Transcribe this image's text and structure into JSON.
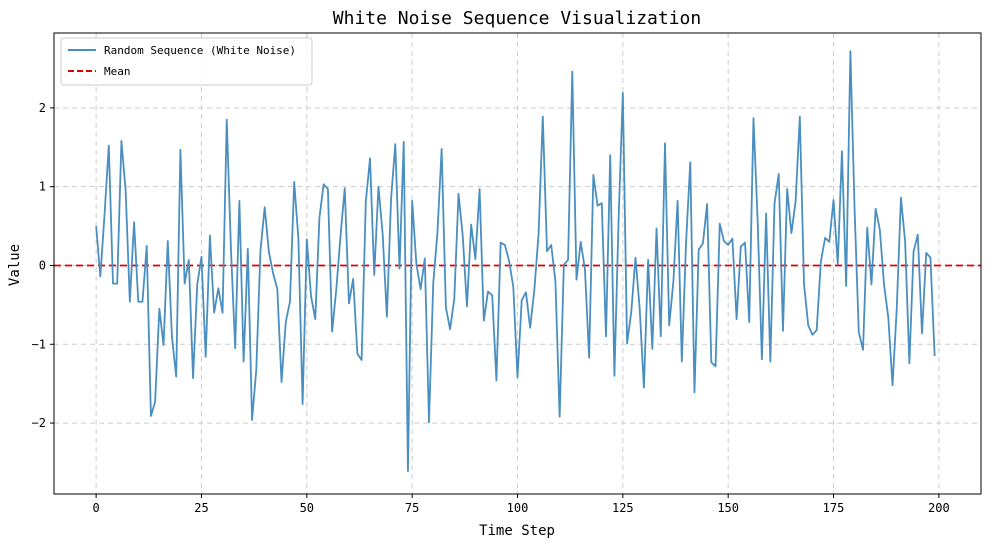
{
  "chart_data": {
    "type": "line",
    "title": "White Noise Sequence Visualization",
    "xlabel": "Time Step",
    "ylabel": "Value",
    "xlim": [
      -10,
      210
    ],
    "ylim": [
      -2.9,
      2.95
    ],
    "xticks": [
      0,
      25,
      50,
      75,
      100,
      125,
      150,
      175,
      200
    ],
    "yticks": [
      -2,
      -1,
      0,
      1,
      2
    ],
    "grid": true,
    "legend_position": "top-left",
    "series": [
      {
        "name": "Random Sequence (White Noise)",
        "color": "#4a8fbf",
        "style": "solid",
        "x_start": 0,
        "x_step": 1,
        "values": [
          0.5,
          -0.14,
          0.65,
          1.52,
          -0.23,
          -0.23,
          1.58,
          0.95,
          -0.46,
          0.55,
          -0.46,
          -0.46,
          0.25,
          -1.91,
          -1.73,
          -0.55,
          -1.01,
          0.31,
          -0.91,
          -1.41,
          1.47,
          -0.23,
          0.07,
          -1.43,
          -0.24,
          0.11,
          -1.16,
          0.38,
          -0.6,
          -0.29,
          -0.6,
          1.85,
          0.2,
          -1.05,
          0.82,
          -1.22,
          0.21,
          -1.96,
          -1.33,
          0.19,
          0.74,
          0.17,
          -0.1,
          -0.3,
          -1.48,
          -0.72,
          -0.46,
          1.06,
          0.34,
          -1.76,
          0.33,
          -0.39,
          -0.68,
          0.61,
          1.03,
          0.97,
          -0.84,
          -0.3,
          0.38,
          0.98,
          -0.48,
          -0.17,
          -1.12,
          -1.2,
          0.81,
          1.36,
          -0.12,
          1.0,
          0.4,
          -0.65,
          0.85,
          1.54,
          -0.04,
          1.57,
          -2.61,
          0.82,
          0.02,
          -0.3,
          0.09,
          -1.99,
          -0.23,
          0.42,
          1.48,
          -0.53,
          -0.81,
          -0.42,
          0.91,
          0.38,
          -0.52,
          0.52,
          0.08,
          0.97,
          -0.7,
          -0.33,
          -0.38,
          -1.46,
          0.29,
          0.26,
          0.06,
          -0.27,
          -1.42,
          -0.44,
          -0.34,
          -0.79,
          -0.31,
          0.4,
          1.89,
          0.18,
          0.26,
          -0.2,
          -1.92,
          0.01,
          0.07,
          2.46,
          -0.18,
          0.3,
          -0.05,
          -1.17,
          1.15,
          0.76,
          0.79,
          -0.9,
          1.4,
          -1.4,
          0.6,
          2.19,
          -0.99,
          -0.59,
          0.1,
          -0.55,
          -1.55,
          0.07,
          -1.06,
          0.47,
          -0.9,
          1.55,
          -0.76,
          -0.2,
          0.82,
          -1.22,
          0.29,
          1.31,
          -1.61,
          0.2,
          0.28,
          0.78,
          -1.23,
          -1.28,
          0.53,
          0.31,
          0.26,
          0.34,
          -0.68,
          0.24,
          0.29,
          -0.72,
          1.87,
          0.56,
          -1.19,
          0.66,
          -1.22,
          0.79,
          1.16,
          -0.83,
          0.97,
          0.41,
          0.81,
          1.89,
          -0.24,
          -0.76,
          -0.88,
          -0.82,
          0.05,
          0.35,
          0.3,
          0.83,
          0.02,
          1.45,
          -0.26,
          2.72,
          0.71,
          -0.85,
          -1.07,
          0.48,
          -0.24,
          0.72,
          0.45,
          -0.25,
          -0.66,
          -1.52,
          -0.55,
          0.86,
          0.3,
          -1.24,
          0.18,
          0.39,
          -0.86,
          0.16,
          0.1,
          -1.15
        ]
      },
      {
        "name": "Mean",
        "color": "#e00000",
        "style": "dashed",
        "constant": 0
      }
    ]
  }
}
